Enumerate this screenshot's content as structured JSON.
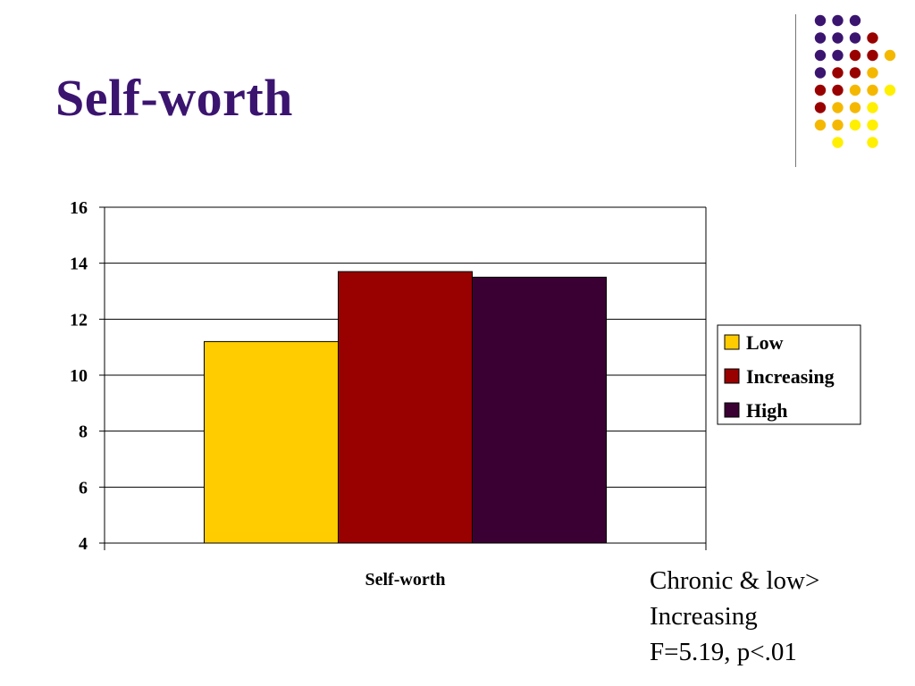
{
  "slide": {
    "title": "Self-worth",
    "note_lines": [
      "Chronic & low>",
      "Increasing",
      "F=5.19, p<.01"
    ]
  },
  "chart_data": {
    "type": "bar",
    "title": "",
    "categories": [
      "Self-worth"
    ],
    "xlabel": "",
    "ylabel": "",
    "ylim": [
      4,
      16
    ],
    "yticks": [
      4,
      6,
      8,
      10,
      12,
      14,
      16
    ],
    "grid": true,
    "legend_position": "right",
    "series": [
      {
        "name": "Low",
        "values": [
          11.2
        ],
        "color": "#FFCC00"
      },
      {
        "name": "Increasing",
        "values": [
          13.7
        ],
        "color": "#990000"
      },
      {
        "name": "High",
        "values": [
          13.5
        ],
        "color": "#3A0033"
      }
    ]
  },
  "decor": {
    "dot_colors": [
      "#3b1470",
      "#990000",
      "#f5b800",
      "#ffef00"
    ]
  }
}
